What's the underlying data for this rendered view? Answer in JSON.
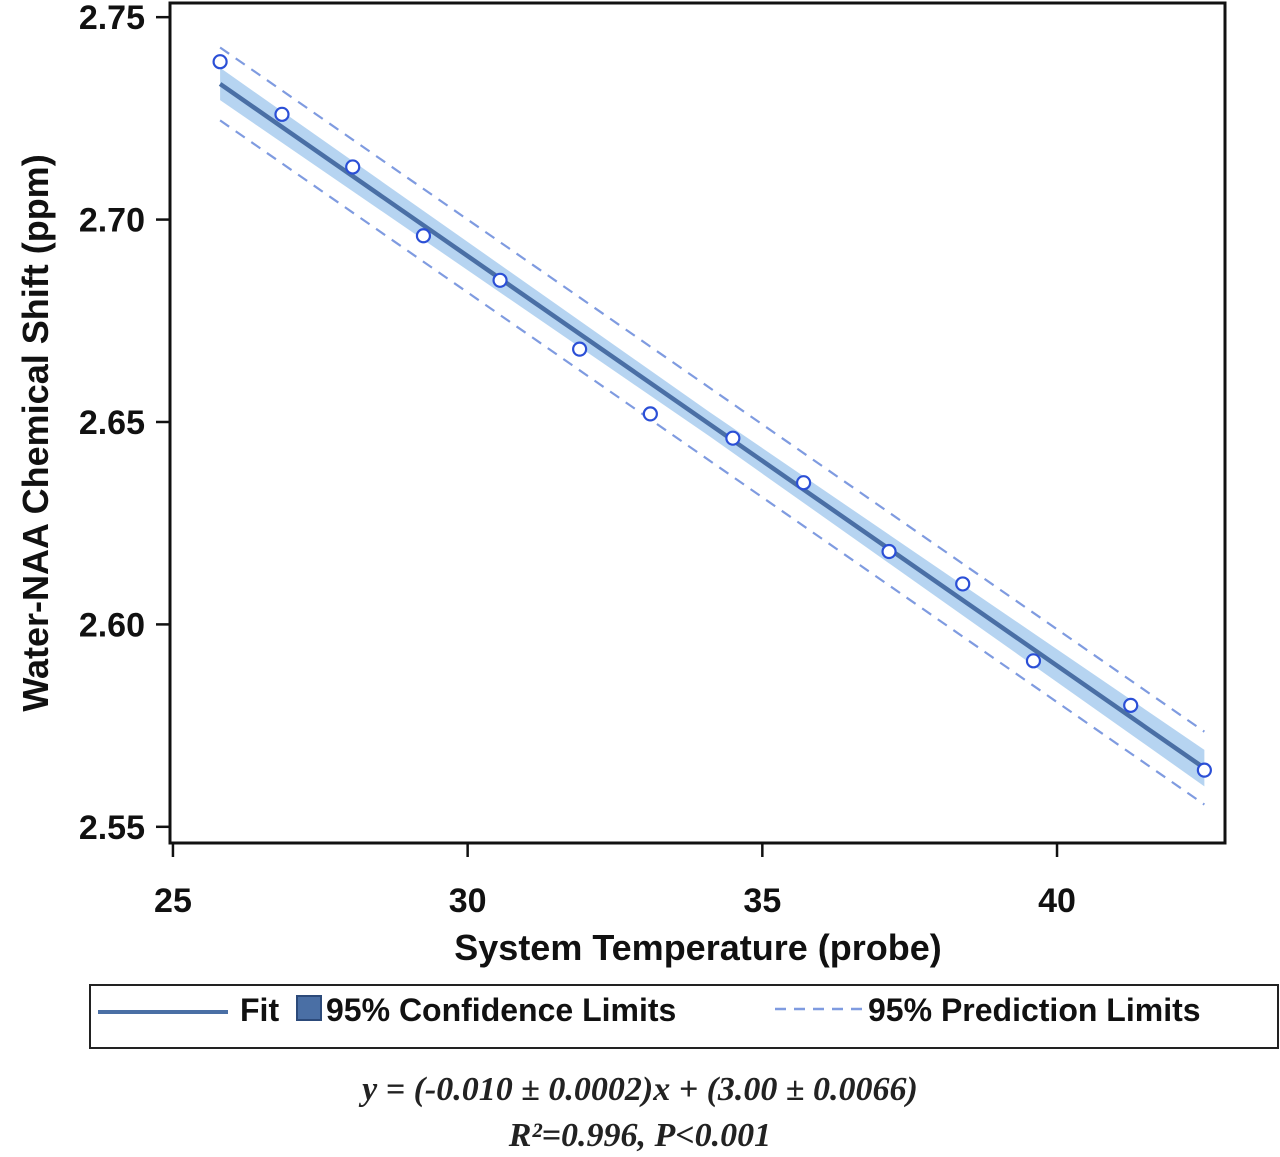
{
  "chart_data": {
    "type": "scatter",
    "title": "",
    "xlabel": "System Temperature (probe)",
    "ylabel": "Water-NAA Chemical Shift (ppm)",
    "xlim": [
      24.95,
      42.85
    ],
    "ylim": [
      2.546,
      2.7535
    ],
    "xticks": [
      25,
      30,
      35,
      40
    ],
    "yticks": [
      2.55,
      2.6,
      2.65,
      2.7,
      2.75
    ],
    "xtick_labels": [
      "25",
      "30",
      "35",
      "40"
    ],
    "ytick_labels": [
      "2.55",
      "2.60",
      "2.65",
      "2.70",
      "2.75"
    ],
    "grid": false,
    "series": [
      {
        "kind": "points",
        "x": [
          25.8,
          26.85,
          28.05,
          29.25,
          30.55,
          31.9,
          33.1,
          34.5,
          35.7,
          37.15,
          38.4,
          39.6,
          41.25,
          42.5
        ],
        "y": [
          2.739,
          2.726,
          2.713,
          2.696,
          2.685,
          2.668,
          2.652,
          2.646,
          2.635,
          2.618,
          2.61,
          2.591,
          2.58,
          2.564
        ],
        "color": "#2b4fd6"
      },
      {
        "kind": "fit",
        "name": "Fit",
        "x": [
          25.8,
          42.5
        ],
        "y": [
          2.7335,
          2.5645
        ],
        "color": "#4a6fa5"
      },
      {
        "kind": "confidence",
        "name": "95% Confidence Limits",
        "x": [
          25.8,
          34.1,
          42.5
        ],
        "upper": [
          2.7375,
          2.6525,
          2.569
        ],
        "lower": [
          2.7295,
          2.6465,
          2.56
        ],
        "color": "#a9cdef"
      },
      {
        "kind": "prediction",
        "name": "95% Prediction Limits",
        "x": [
          25.8,
          42.5
        ],
        "upper": [
          2.7425,
          2.5735
        ],
        "lower": [
          2.7245,
          2.5555
        ],
        "color": "#7f9be0"
      }
    ],
    "legend": {
      "placement": "bottom",
      "fit_label": "Fit",
      "confidence_label": "95% Confidence Limits",
      "prediction_label": "95% Prediction Limits"
    },
    "annotations": {
      "equation": "y = (-0.010 ± 0.0002)x + (3.00 ± 0.0066)",
      "stats": "R²=0.996, P<0.001"
    }
  }
}
